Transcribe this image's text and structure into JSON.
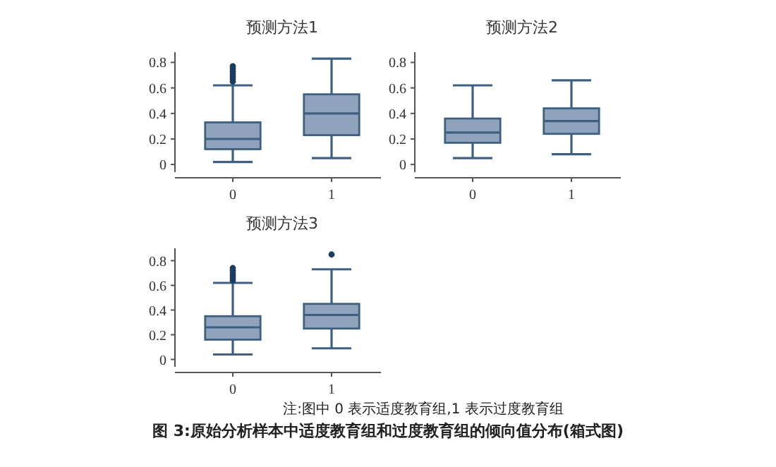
{
  "chart_data": [
    {
      "type": "box",
      "title": "预测方法1",
      "categories": [
        "0",
        "1"
      ],
      "ylim": [
        -0.06,
        0.88
      ],
      "yticks": [
        0,
        0.2,
        0.4,
        0.6,
        0.8
      ],
      "series": [
        {
          "color": "#8fa3bd",
          "boxes": [
            {
              "low": 0.02,
              "q1": 0.12,
              "median": 0.2,
              "q3": 0.33,
              "high": 0.62,
              "outliers": [
                0.65,
                0.67,
                0.69,
                0.71,
                0.73,
                0.75,
                0.77
              ]
            },
            {
              "low": 0.05,
              "q1": 0.23,
              "median": 0.4,
              "q3": 0.55,
              "high": 0.83
            }
          ]
        }
      ]
    },
    {
      "type": "box",
      "title": "预测方法2",
      "categories": [
        "0",
        "1"
      ],
      "ylim": [
        -0.06,
        0.88
      ],
      "yticks": [
        0,
        0.2,
        0.4,
        0.6,
        0.8
      ],
      "series": [
        {
          "color": "#8fa3bd",
          "boxes": [
            {
              "low": 0.05,
              "q1": 0.17,
              "median": 0.25,
              "q3": 0.36,
              "high": 0.62
            },
            {
              "low": 0.08,
              "q1": 0.24,
              "median": 0.34,
              "q3": 0.44,
              "high": 0.66
            }
          ]
        }
      ]
    },
    {
      "type": "box",
      "title": "预测方法3",
      "categories": [
        "0",
        "1"
      ],
      "ylim": [
        -0.06,
        0.9
      ],
      "yticks": [
        0,
        0.2,
        0.4,
        0.6,
        0.8
      ],
      "series": [
        {
          "color": "#8fa3bd",
          "boxes": [
            {
              "low": 0.04,
              "q1": 0.16,
              "median": 0.26,
              "q3": 0.35,
              "high": 0.62,
              "outliers": [
                0.64,
                0.66,
                0.68,
                0.7,
                0.72,
                0.74
              ]
            },
            {
              "low": 0.09,
              "q1": 0.25,
              "median": 0.36,
              "q3": 0.45,
              "high": 0.73,
              "outliers": [
                0.85
              ]
            }
          ]
        }
      ],
      "annotations": [
        "注:图中 0 表示适度教育组,1 表示过度教育组",
        "图 3:原始分析样本中适度教育组和过度教育组的倾向值分布(箱式图)"
      ]
    }
  ]
}
